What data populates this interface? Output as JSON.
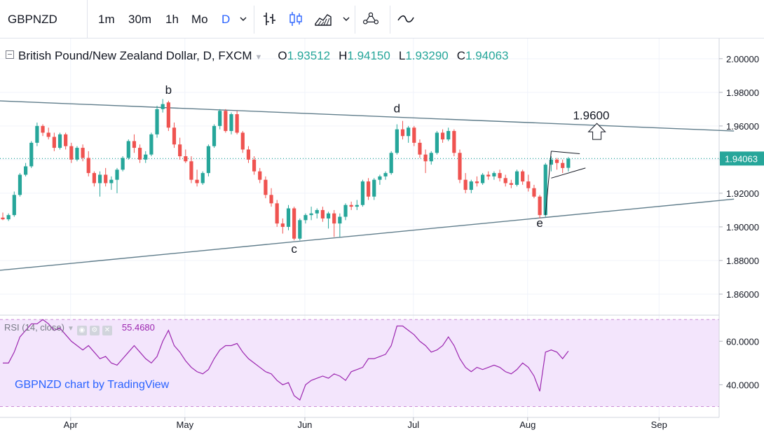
{
  "toolbar": {
    "symbol": "GBPNZD",
    "intervals": [
      "1m",
      "30m",
      "1h",
      "Mo",
      "D"
    ],
    "active_interval": "D",
    "icons": [
      "chevron-down-icon",
      "bar-style-icon",
      "candle-style-icon",
      "area-style-icon",
      "chevron-down-icon",
      "indicators-icon",
      "compare-icon"
    ]
  },
  "legend": {
    "title": "British Pound/New Zealand Dollar, D, FXCM",
    "open_label": "O",
    "open": "1.93512",
    "high_label": "H",
    "high": "1.94150",
    "low_label": "L",
    "low": "1.93290",
    "close_label": "C",
    "close": "1.94063"
  },
  "rsi_legend": {
    "label": "RSI (14, close)",
    "value": "55.4680"
  },
  "watermark": "GBPNZD chart by TradingView",
  "colors": {
    "up": "#26a69a",
    "down": "#ef5350",
    "trend": "#607d8b",
    "rsi": "#9c27b0",
    "rsi_bg": "#f3e5fc",
    "price_label": "#26a69a"
  },
  "chart_data": [
    {
      "type": "candlestick",
      "title": "British Pound/New Zealand Dollar, D, FXCM",
      "y_ticks": [
        "2.00000",
        "1.98000",
        "1.96000",
        "1.94000",
        "1.92000",
        "1.90000",
        "1.88000",
        "1.86000"
      ],
      "ylim": [
        1.8475,
        2.012
      ],
      "x_ticks": [
        "Apr",
        "May",
        "Jun",
        "Jul",
        "Aug",
        "Sep"
      ],
      "last_price": "1.94063",
      "candles": [
        [
          1.9055,
          1.9085,
          1.904,
          1.9045
        ],
        [
          1.9045,
          1.908,
          1.9035,
          1.907
        ],
        [
          1.907,
          1.921,
          1.906,
          1.919
        ],
        [
          1.919,
          1.932,
          1.918,
          1.931
        ],
        [
          1.931,
          1.938,
          1.93,
          1.936
        ],
        [
          1.936,
          1.951,
          1.935,
          1.95
        ],
        [
          1.95,
          1.962,
          1.948,
          1.96
        ],
        [
          1.96,
          1.961,
          1.954,
          1.956
        ],
        [
          1.956,
          1.959,
          1.952,
          1.9535
        ],
        [
          1.9535,
          1.956,
          1.945,
          1.947
        ],
        [
          1.947,
          1.956,
          1.946,
          1.955
        ],
        [
          1.955,
          1.956,
          1.946,
          1.948
        ],
        [
          1.948,
          1.95,
          1.938,
          1.94
        ],
        [
          1.94,
          1.948,
          1.939,
          1.947
        ],
        [
          1.947,
          1.949,
          1.939,
          1.941
        ],
        [
          1.941,
          1.945,
          1.93,
          1.932
        ],
        [
          1.932,
          1.933,
          1.924,
          1.926
        ],
        [
          1.926,
          1.933,
          1.918,
          1.931
        ],
        [
          1.931,
          1.935,
          1.924,
          1.926
        ],
        [
          1.926,
          1.93,
          1.922,
          1.928
        ],
        [
          1.928,
          1.935,
          1.92,
          1.934
        ],
        [
          1.934,
          1.942,
          1.933,
          1.941
        ],
        [
          1.941,
          1.952,
          1.94,
          1.951
        ],
        [
          1.951,
          1.955,
          1.944,
          1.947
        ],
        [
          1.947,
          1.949,
          1.938,
          1.94
        ],
        [
          1.94,
          1.945,
          1.938,
          1.943
        ],
        [
          1.943,
          1.956,
          1.942,
          1.955
        ],
        [
          1.955,
          1.972,
          1.953,
          1.97
        ],
        [
          1.97,
          1.976,
          1.968,
          1.973
        ],
        [
          1.974,
          1.975,
          1.957,
          1.959
        ],
        [
          1.959,
          1.962,
          1.947,
          1.949
        ],
        [
          1.949,
          1.953,
          1.94,
          1.942
        ],
        [
          1.942,
          1.946,
          1.938,
          1.939
        ],
        [
          1.939,
          1.942,
          1.926,
          1.928
        ],
        [
          1.928,
          1.934,
          1.924,
          1.926
        ],
        [
          1.926,
          1.933,
          1.925,
          1.932
        ],
        [
          1.932,
          1.949,
          1.93,
          1.948
        ],
        [
          1.948,
          1.961,
          1.947,
          1.96
        ],
        [
          1.96,
          1.97,
          1.958,
          1.969
        ],
        [
          1.969,
          1.97,
          1.956,
          1.957
        ],
        [
          1.957,
          1.968,
          1.955,
          1.967
        ],
        [
          1.967,
          1.969,
          1.955,
          1.956
        ],
        [
          1.956,
          1.957,
          1.944,
          1.946
        ],
        [
          1.946,
          1.948,
          1.938,
          1.94
        ],
        [
          1.94,
          1.942,
          1.931,
          1.933
        ],
        [
          1.933,
          1.935,
          1.926,
          1.928
        ],
        [
          1.928,
          1.93,
          1.917,
          1.919
        ],
        [
          1.919,
          1.923,
          1.912,
          1.914
        ],
        [
          1.914,
          1.916,
          1.9,
          1.902
        ],
        [
          1.902,
          1.905,
          1.896,
          1.9
        ],
        [
          1.9,
          1.913,
          1.898,
          1.911
        ],
        [
          1.911,
          1.912,
          1.892,
          1.893
        ],
        [
          1.893,
          1.905,
          1.892,
          1.904
        ],
        [
          1.904,
          1.908,
          1.902,
          1.907
        ],
        [
          1.907,
          1.912,
          1.904,
          1.908
        ],
        [
          1.908,
          1.911,
          1.905,
          1.91
        ],
        [
          1.91,
          1.912,
          1.903,
          1.905
        ],
        [
          1.905,
          1.909,
          1.899,
          1.908
        ],
        [
          1.908,
          1.91,
          1.894,
          1.902
        ],
        [
          1.902,
          1.908,
          1.894,
          1.906
        ],
        [
          1.906,
          1.914,
          1.904,
          1.913
        ],
        [
          1.913,
          1.915,
          1.91,
          1.912
        ],
        [
          1.912,
          1.916,
          1.91,
          1.913
        ],
        [
          1.913,
          1.928,
          1.912,
          1.927
        ],
        [
          1.927,
          1.929,
          1.916,
          1.918
        ],
        [
          1.918,
          1.929,
          1.916,
          1.928
        ],
        [
          1.928,
          1.931,
          1.925,
          1.93
        ],
        [
          1.93,
          1.933,
          1.928,
          1.932
        ],
        [
          1.932,
          1.945,
          1.931,
          1.944
        ],
        [
          1.944,
          1.961,
          1.943,
          1.958
        ],
        [
          1.958,
          1.963,
          1.952,
          1.954
        ],
        [
          1.954,
          1.96,
          1.95,
          1.959
        ],
        [
          1.959,
          1.96,
          1.948,
          1.95
        ],
        [
          1.95,
          1.952,
          1.941,
          1.943
        ],
        [
          1.943,
          1.946,
          1.932,
          1.939
        ],
        [
          1.939,
          1.945,
          1.937,
          1.944
        ],
        [
          1.944,
          1.957,
          1.943,
          1.956
        ],
        [
          1.956,
          1.958,
          1.95,
          1.952
        ],
        [
          1.952,
          1.959,
          1.951,
          1.957
        ],
        [
          1.957,
          1.958,
          1.942,
          1.944
        ],
        [
          1.944,
          1.946,
          1.926,
          1.928
        ],
        [
          1.928,
          1.932,
          1.92,
          1.922
        ],
        [
          1.922,
          1.928,
          1.92,
          1.927
        ],
        [
          1.927,
          1.93,
          1.924,
          1.926
        ],
        [
          1.926,
          1.932,
          1.925,
          1.931
        ],
        [
          1.931,
          1.933,
          1.928,
          1.93
        ],
        [
          1.93,
          1.933,
          1.928,
          1.932
        ],
        [
          1.932,
          1.934,
          1.927,
          1.929
        ],
        [
          1.929,
          1.931,
          1.924,
          1.926
        ],
        [
          1.926,
          1.928,
          1.923,
          1.925
        ],
        [
          1.925,
          1.934,
          1.924,
          1.933
        ],
        [
          1.933,
          1.934,
          1.925,
          1.927
        ],
        [
          1.927,
          1.931,
          1.921,
          1.923
        ],
        [
          1.923,
          1.925,
          1.917,
          1.918
        ],
        [
          1.918,
          1.919,
          1.905,
          1.907
        ],
        [
          1.907,
          1.938,
          1.906,
          1.937
        ],
        [
          1.937,
          1.942,
          1.933,
          1.94
        ],
        [
          1.94,
          1.941,
          1.934,
          1.938
        ],
        [
          1.938,
          1.94,
          1.932,
          1.935
        ],
        [
          1.9351,
          1.9415,
          1.9329,
          1.9406
        ]
      ],
      "annotations": [
        {
          "label": "b",
          "candle": 29,
          "price": 1.979
        },
        {
          "label": "c",
          "candle": 51,
          "price": 1.8845
        },
        {
          "label": "d",
          "candle": 69,
          "price": 1.968
        },
        {
          "label": "e",
          "candle": 94,
          "price": 1.9
        },
        {
          "label": "1.9600",
          "candle": 103,
          "price": 1.964
        }
      ],
      "trendlines": [
        {
          "from": {
            "candle": -1,
            "price": 1.975
          },
          "to": {
            "candle": 128,
            "price": 1.957
          }
        },
        {
          "from": {
            "candle": -1,
            "price": 1.874
          },
          "to": {
            "candle": 128,
            "price": 1.9165
          }
        }
      ],
      "pennant": {
        "upper": [
          [
            96,
            1.945
          ],
          [
            101,
            1.9435
          ]
        ],
        "lower": [
          [
            96,
            1.929
          ],
          [
            102,
            1.935
          ]
        ]
      },
      "target_arrow": {
        "candle": 104,
        "price_from": 1.952,
        "price_to": 1.9615
      }
    },
    {
      "type": "line",
      "title": "RSI (14, close)",
      "y_ticks": [
        "60.0000",
        "40.0000"
      ],
      "ylim": [
        25,
        72
      ],
      "band": [
        30,
        70
      ],
      "values": [
        50,
        50,
        55,
        62,
        65,
        68,
        68,
        70,
        68,
        65,
        66,
        63,
        60,
        58,
        56,
        58,
        55,
        52,
        53,
        50,
        49,
        52,
        55,
        58,
        55,
        52,
        50,
        53,
        60,
        65,
        58,
        55,
        51,
        48,
        46,
        45,
        47,
        52,
        56,
        58,
        58,
        59,
        55,
        52,
        50,
        48,
        46,
        45,
        42,
        40,
        41,
        35,
        33,
        40,
        42,
        43,
        44,
        43,
        45,
        44,
        42,
        46,
        47,
        48,
        52,
        52,
        53,
        54,
        58,
        67,
        67,
        65,
        63,
        60,
        58,
        55,
        56,
        58,
        62,
        58,
        52,
        48,
        46,
        48,
        47,
        48,
        49,
        48,
        46,
        45,
        47,
        50,
        48,
        44,
        37,
        55,
        56,
        55,
        52,
        55.468
      ]
    }
  ]
}
